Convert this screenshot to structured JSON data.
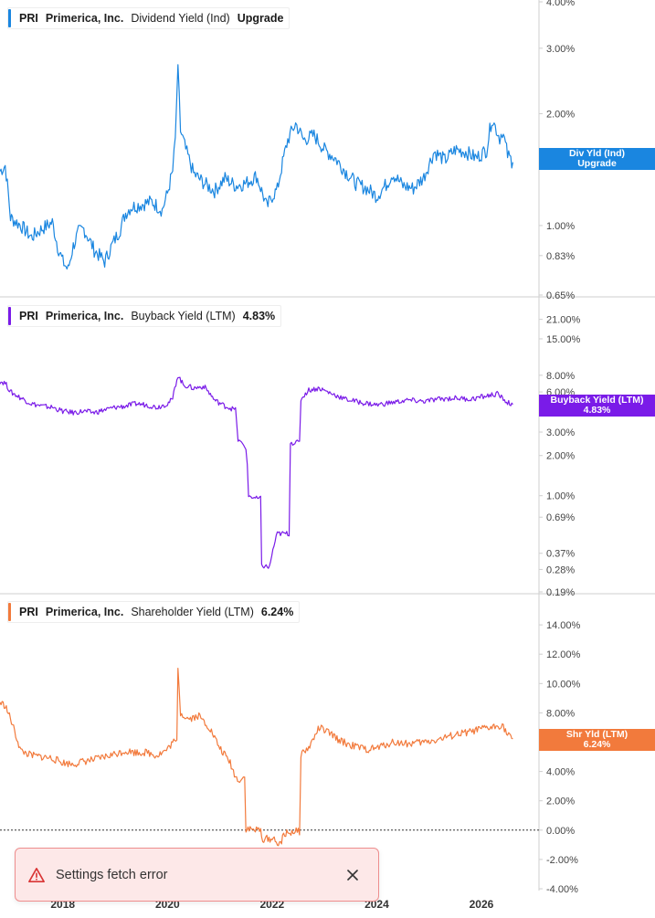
{
  "colors": {
    "dividend": "#1a86e0",
    "buyback": "#7a1be8",
    "shareholder": "#f27a3c",
    "toast_red": "#d93434"
  },
  "x_axis": {
    "ticks": [
      "2018",
      "2020",
      "2022",
      "2024",
      "2026"
    ],
    "range": [
      2016.8,
      2027.1
    ]
  },
  "panels": [
    {
      "ticker": "PRI",
      "company": "Primerica, Inc.",
      "metric": "Dividend Yield (Ind)",
      "value": "Upgrade",
      "tag_line1": "Div Yld (Ind)",
      "tag_line2": "Upgrade"
    },
    {
      "ticker": "PRI",
      "company": "Primerica, Inc.",
      "metric": "Buyback Yield (LTM)",
      "value": "4.83%",
      "tag_line1": "Buyback Yield (LTM)",
      "tag_line2": "4.83%"
    },
    {
      "ticker": "PRI",
      "company": "Primerica, Inc.",
      "metric": "Shareholder Yield (LTM)",
      "value": "6.24%",
      "tag_line1": "Shr Yld (LTM)",
      "tag_line2": "6.24%"
    }
  ],
  "toast": {
    "message": "Settings fetch error",
    "warning_icon": "warning-triangle-icon",
    "close_icon": "close-icon"
  },
  "chart_data": [
    {
      "type": "line",
      "title": "",
      "series": [
        {
          "name": "Dividend Yield (Ind)",
          "values": [
            [
              2016.8,
              1.4
            ],
            [
              2016.9,
              1.45
            ],
            [
              2017.0,
              1.05
            ],
            [
              2017.2,
              1.0
            ],
            [
              2017.4,
              0.93
            ],
            [
              2017.6,
              0.98
            ],
            [
              2017.8,
              1.02
            ],
            [
              2017.9,
              0.88
            ],
            [
              2018.0,
              0.8
            ],
            [
              2018.1,
              0.76
            ],
            [
              2018.2,
              0.88
            ],
            [
              2018.3,
              0.96
            ],
            [
              2018.4,
              0.98
            ],
            [
              2018.5,
              0.92
            ],
            [
              2018.6,
              0.86
            ],
            [
              2018.8,
              0.8
            ],
            [
              2018.9,
              0.86
            ],
            [
              2019.1,
              0.98
            ],
            [
              2019.2,
              1.08
            ],
            [
              2019.3,
              1.12
            ],
            [
              2019.5,
              1.14
            ],
            [
              2019.7,
              1.16
            ],
            [
              2019.9,
              1.1
            ],
            [
              2020.0,
              1.22
            ],
            [
              2020.1,
              1.4
            ],
            [
              2020.15,
              1.7
            ],
            [
              2020.2,
              2.6
            ],
            [
              2020.25,
              1.8
            ],
            [
              2020.35,
              1.6
            ],
            [
              2020.5,
              1.38
            ],
            [
              2020.7,
              1.3
            ],
            [
              2020.9,
              1.24
            ],
            [
              2021.1,
              1.34
            ],
            [
              2021.3,
              1.28
            ],
            [
              2021.5,
              1.3
            ],
            [
              2021.7,
              1.36
            ],
            [
              2021.9,
              1.12
            ],
            [
              2022.0,
              1.2
            ],
            [
              2022.1,
              1.25
            ],
            [
              2022.3,
              1.7
            ],
            [
              2022.45,
              1.88
            ],
            [
              2022.6,
              1.7
            ],
            [
              2022.8,
              1.75
            ],
            [
              2023.0,
              1.6
            ],
            [
              2023.2,
              1.52
            ],
            [
              2023.4,
              1.4
            ],
            [
              2023.6,
              1.3
            ],
            [
              2023.8,
              1.26
            ],
            [
              2024.0,
              1.2
            ],
            [
              2024.2,
              1.3
            ],
            [
              2024.3,
              1.38
            ],
            [
              2024.5,
              1.28
            ],
            [
              2024.7,
              1.26
            ],
            [
              2024.9,
              1.35
            ],
            [
              2025.1,
              1.58
            ],
            [
              2025.3,
              1.5
            ],
            [
              2025.5,
              1.6
            ],
            [
              2025.7,
              1.58
            ],
            [
              2025.9,
              1.52
            ],
            [
              2026.1,
              1.6
            ],
            [
              2026.2,
              1.94
            ],
            [
              2026.35,
              1.72
            ],
            [
              2026.4,
              1.8
            ],
            [
              2026.5,
              1.55
            ],
            [
              2026.6,
              1.48
            ]
          ]
        }
      ],
      "y_ticks": [
        "0.65%",
        "0.83%",
        "1.00%",
        "2.00%",
        "3.00%",
        "4.00%"
      ],
      "scale": "log",
      "ylim": [
        0.65,
        4.0
      ]
    },
    {
      "type": "line",
      "title": "",
      "series": [
        {
          "name": "Buyback Yield (LTM)",
          "values": [
            [
              2016.8,
              7.2
            ],
            [
              2016.9,
              7.0
            ],
            [
              2017.0,
              6.0
            ],
            [
              2017.2,
              5.4
            ],
            [
              2017.4,
              4.9
            ],
            [
              2017.6,
              4.7
            ],
            [
              2017.8,
              4.6
            ],
            [
              2018.0,
              4.3
            ],
            [
              2018.2,
              4.2
            ],
            [
              2018.4,
              4.3
            ],
            [
              2018.6,
              4.2
            ],
            [
              2018.8,
              4.4
            ],
            [
              2019.0,
              4.6
            ],
            [
              2019.2,
              4.7
            ],
            [
              2019.4,
              4.9
            ],
            [
              2019.6,
              4.8
            ],
            [
              2019.8,
              4.6
            ],
            [
              2020.0,
              4.9
            ],
            [
              2020.1,
              5.3
            ],
            [
              2020.2,
              8.0
            ],
            [
              2020.3,
              6.8
            ],
            [
              2020.5,
              6.4
            ],
            [
              2020.7,
              6.6
            ],
            [
              2020.9,
              5.2
            ],
            [
              2021.1,
              4.7
            ],
            [
              2021.3,
              4.4
            ],
            [
              2021.35,
              2.6
            ],
            [
              2021.5,
              2.3
            ],
            [
              2021.55,
              1.0
            ],
            [
              2021.7,
              0.95
            ],
            [
              2021.8,
              0.3
            ],
            [
              2021.95,
              0.29
            ],
            [
              2022.1,
              0.52
            ],
            [
              2022.3,
              0.52
            ],
            [
              2022.35,
              2.5
            ],
            [
              2022.5,
              2.5
            ],
            [
              2022.55,
              5.3
            ],
            [
              2022.7,
              6.2
            ],
            [
              2022.9,
              6.4
            ],
            [
              2023.1,
              5.9
            ],
            [
              2023.4,
              5.3
            ],
            [
              2023.7,
              5.0
            ],
            [
              2024.0,
              4.8
            ],
            [
              2024.3,
              5.0
            ],
            [
              2024.6,
              5.2
            ],
            [
              2024.9,
              5.1
            ],
            [
              2025.2,
              5.3
            ],
            [
              2025.5,
              5.4
            ],
            [
              2025.8,
              5.3
            ],
            [
              2026.1,
              5.6
            ],
            [
              2026.3,
              5.8
            ],
            [
              2026.5,
              5.0
            ],
            [
              2026.6,
              4.83
            ]
          ]
        }
      ],
      "y_ticks": [
        "0.19%",
        "0.28%",
        "0.37%",
        "0.69%",
        "1.00%",
        "2.00%",
        "3.00%",
        "6.00%",
        "8.00%",
        "15.00%",
        "21.00%"
      ],
      "scale": "log",
      "ylim": [
        0.19,
        30.0
      ]
    },
    {
      "type": "line",
      "title": "",
      "series": [
        {
          "name": "Shareholder Yield (LTM)",
          "values": [
            [
              2016.8,
              8.7
            ],
            [
              2016.9,
              8.5
            ],
            [
              2017.0,
              7.6
            ],
            [
              2017.2,
              5.4
            ],
            [
              2017.4,
              5.1
            ],
            [
              2017.6,
              5.0
            ],
            [
              2017.8,
              4.9
            ],
            [
              2018.0,
              4.6
            ],
            [
              2018.2,
              4.5
            ],
            [
              2018.4,
              4.7
            ],
            [
              2018.6,
              4.8
            ],
            [
              2018.8,
              5.0
            ],
            [
              2019.0,
              5.2
            ],
            [
              2019.2,
              5.4
            ],
            [
              2019.4,
              5.3
            ],
            [
              2019.6,
              5.3
            ],
            [
              2019.8,
              5.1
            ],
            [
              2020.0,
              5.5
            ],
            [
              2020.1,
              6.0
            ],
            [
              2020.2,
              11.2
            ],
            [
              2020.25,
              8.0
            ],
            [
              2020.4,
              7.6
            ],
            [
              2020.6,
              7.8
            ],
            [
              2020.8,
              7.0
            ],
            [
              2021.0,
              5.6
            ],
            [
              2021.2,
              4.6
            ],
            [
              2021.3,
              3.6
            ],
            [
              2021.4,
              3.4
            ],
            [
              2021.45,
              3.6
            ],
            [
              2021.5,
              0.1
            ],
            [
              2021.7,
              0.0
            ],
            [
              2021.8,
              -0.6
            ],
            [
              2022.0,
              -0.6
            ],
            [
              2022.1,
              -1.0
            ],
            [
              2022.2,
              -0.3
            ],
            [
              2022.4,
              -0.1
            ],
            [
              2022.5,
              -0.1
            ],
            [
              2022.55,
              5.2
            ],
            [
              2022.7,
              5.6
            ],
            [
              2022.9,
              7.0
            ],
            [
              2023.1,
              6.6
            ],
            [
              2023.3,
              6.1
            ],
            [
              2023.5,
              5.8
            ],
            [
              2023.8,
              5.5
            ],
            [
              2024.0,
              5.6
            ],
            [
              2024.3,
              6.0
            ],
            [
              2024.6,
              5.9
            ],
            [
              2024.9,
              6.0
            ],
            [
              2025.2,
              6.2
            ],
            [
              2025.5,
              6.5
            ],
            [
              2025.8,
              6.7
            ],
            [
              2026.0,
              6.9
            ],
            [
              2026.2,
              7.0
            ],
            [
              2026.4,
              7.2
            ],
            [
              2026.5,
              6.5
            ],
            [
              2026.6,
              6.24
            ]
          ]
        }
      ],
      "y_ticks": [
        "-4.00%",
        "-2.00%",
        "0.00%",
        "2.00%",
        "4.00%",
        "6.00%",
        "8.00%",
        "10.00%",
        "12.00%",
        "14.00%"
      ],
      "scale": "linear",
      "ylim": [
        -4.0,
        16.0
      ]
    }
  ]
}
